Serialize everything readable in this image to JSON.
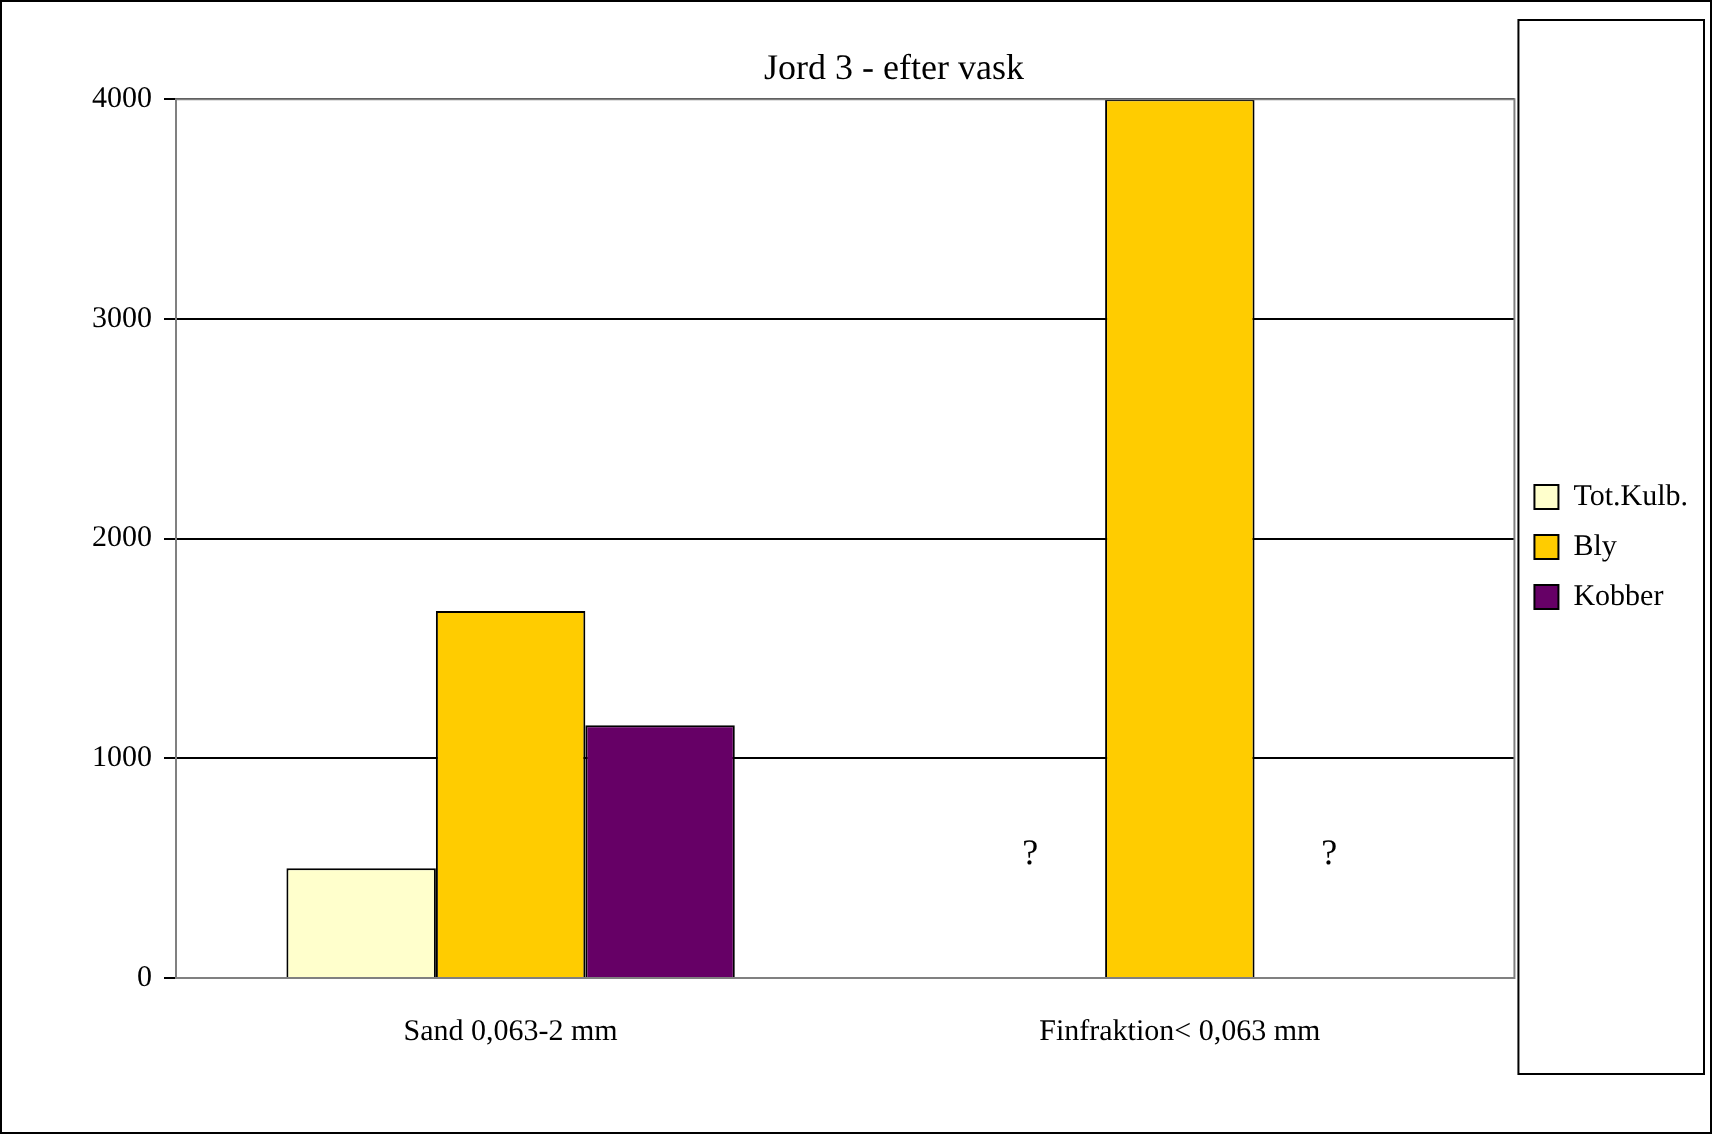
{
  "chart_data": {
    "type": "bar",
    "title": "Jord 3 - efter vask",
    "categories": [
      "Sand 0,063-2 mm",
      "Finfraktion< 0,063 mm"
    ],
    "series": [
      {
        "name": "Tot.Kulb.",
        "color": "#ffffcc",
        "values": [
          500,
          null
        ],
        "value_labels": [
          null,
          "?"
        ]
      },
      {
        "name": "Bly",
        "color": "#ffcc00",
        "values": [
          1670,
          4000
        ]
      },
      {
        "name": "Kobber",
        "color": "#660066",
        "values": [
          1150,
          null
        ],
        "value_labels": [
          null,
          "?"
        ]
      }
    ],
    "ylim": [
      0,
      4000
    ],
    "yticks": [
      0,
      1000,
      2000,
      3000,
      4000
    ],
    "grid": "y",
    "legend": "right"
  }
}
